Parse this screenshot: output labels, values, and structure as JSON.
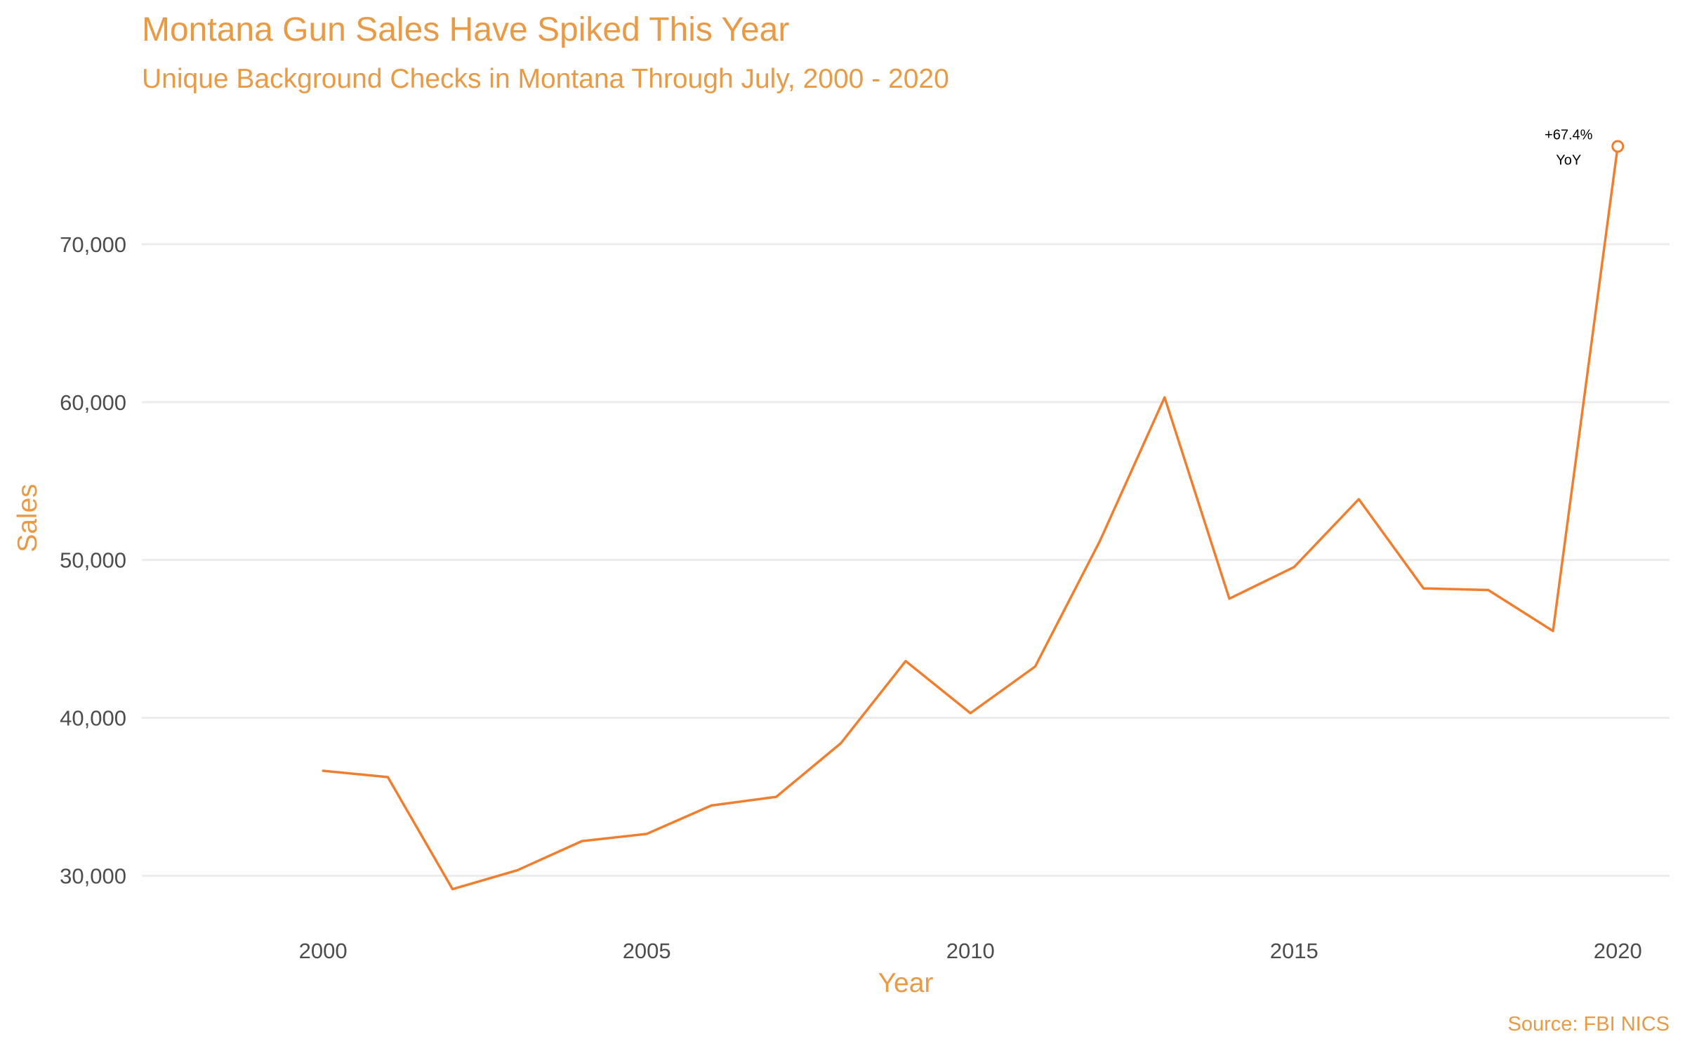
{
  "chart_data": {
    "type": "line",
    "title": "Montana Gun Sales Have Spiked This Year",
    "subtitle": "Unique Background Checks in Montana Through July, 2000 - 2020",
    "xlabel": "Year",
    "ylabel": "Sales",
    "caption": "Source: FBI NICS",
    "xlim": [
      1997.2,
      2020.8
    ],
    "ylim": [
      27000,
      78000
    ],
    "x_ticks": [
      2000,
      2005,
      2010,
      2015,
      2020
    ],
    "x_tick_labels": [
      "2000",
      "2005",
      "2010",
      "2015",
      "2020"
    ],
    "y_ticks": [
      30000,
      40000,
      50000,
      60000,
      70000
    ],
    "y_tick_labels": [
      "30,000",
      "40,000",
      "50,000",
      "60,000",
      "70,000"
    ],
    "grid": "horizontal",
    "legend": "none",
    "series": [
      {
        "x": [
          2000,
          2001,
          2002,
          2003,
          2004,
          2005,
          2006,
          2007,
          2008,
          2009,
          2010,
          2011,
          2012,
          2013,
          2014,
          2015,
          2016,
          2017,
          2018,
          2019,
          2020
        ],
        "values": [
          36650,
          36250,
          29150,
          30350,
          32200,
          32650,
          34450,
          35000,
          38400,
          43600,
          40300,
          43250,
          51200,
          60300,
          47550,
          49550,
          53850,
          48200,
          48100,
          45500,
          76200
        ]
      }
    ],
    "annotation": {
      "lines": [
        "+67.4%",
        "YoY"
      ],
      "x": 2020,
      "y": 76200
    },
    "colors": {
      "line": "#f07e2f",
      "text_accent": "#e99a45",
      "grid": "#ececec",
      "tick_text": "#4d4d4d"
    }
  }
}
